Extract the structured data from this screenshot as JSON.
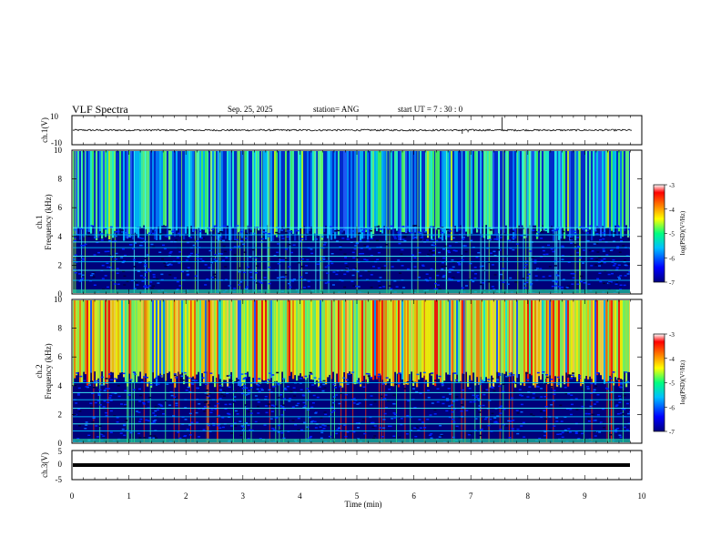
{
  "header": {
    "title": "VLF Spectra",
    "date": "Sep. 25, 2025",
    "station": "station= ANG",
    "start": "start  UT =   7 : 30 : 0"
  },
  "chart_data": [
    {
      "type": "line",
      "id": "ch1-waveform",
      "ylabel": "ch.1(V)",
      "ylim": [
        -10,
        10
      ],
      "ytick_labels": [
        "10",
        "-10"
      ],
      "xlim": [
        0,
        10
      ],
      "baseline": 0,
      "noise_amplitude": 0.6,
      "spikes": [
        {
          "x": 6.85,
          "y": -2.5
        },
        {
          "x": 6.95,
          "y": -1.5
        },
        {
          "x": 7.55,
          "y": 9
        }
      ]
    },
    {
      "type": "heatmap",
      "id": "ch1-spectrogram",
      "ylabel": "ch.1",
      "ylabel2": "Frequency  (kHz)",
      "ylim": [
        0,
        10
      ],
      "ytick_labels": [
        "0",
        "2",
        "4",
        "6",
        "8",
        "10"
      ],
      "xlim": [
        0,
        9.83
      ],
      "description_series": {
        "floor_khz": 4.8,
        "horizontal_lines_khz": [
          0.9,
          1.6,
          2.2,
          2.6,
          3.2,
          3.6,
          4.1,
          4.6
        ]
      },
      "colorbar": {
        "label": "log(PSD)(V²/Hz)",
        "range": [
          -7,
          -3
        ],
        "tick_labels": [
          "-3",
          "-4",
          "-5",
          "-6",
          "-7"
        ]
      }
    },
    {
      "type": "heatmap",
      "id": "ch2-spectrogram",
      "ylabel": "ch.2",
      "ylabel2": "Frequency  (kHz)",
      "ylim": [
        0,
        10
      ],
      "ytick_labels": [
        "0",
        "2",
        "4",
        "6",
        "8",
        "10"
      ],
      "xlim": [
        0,
        9.83
      ],
      "description_series": {
        "floor_khz": 5.0,
        "horizontal_lines_khz": [
          0.8,
          1.3,
          1.8,
          2.4,
          3.0,
          3.5,
          4.2
        ]
      },
      "colorbar": {
        "label": "log(PSD)(V²/Hz)",
        "range": [
          -7,
          -3
        ],
        "tick_labels": [
          "-3",
          "-4",
          "-5",
          "-6",
          "-7"
        ]
      }
    },
    {
      "type": "line",
      "id": "ch3-waveform",
      "ylabel": "ch.3(V)",
      "ylim": [
        -5,
        5
      ],
      "ytick_labels": [
        "5",
        "0",
        "-5"
      ],
      "xlim": [
        0,
        10
      ],
      "baseline": 0
    }
  ],
  "xaxis": {
    "label": "Time  (min)",
    "tick_labels": [
      "0",
      "1",
      "2",
      "3",
      "4",
      "5",
      "6",
      "7",
      "8",
      "9",
      "10"
    ],
    "xlim": [
      0,
      10
    ]
  },
  "colors": {
    "line": "#000000"
  }
}
